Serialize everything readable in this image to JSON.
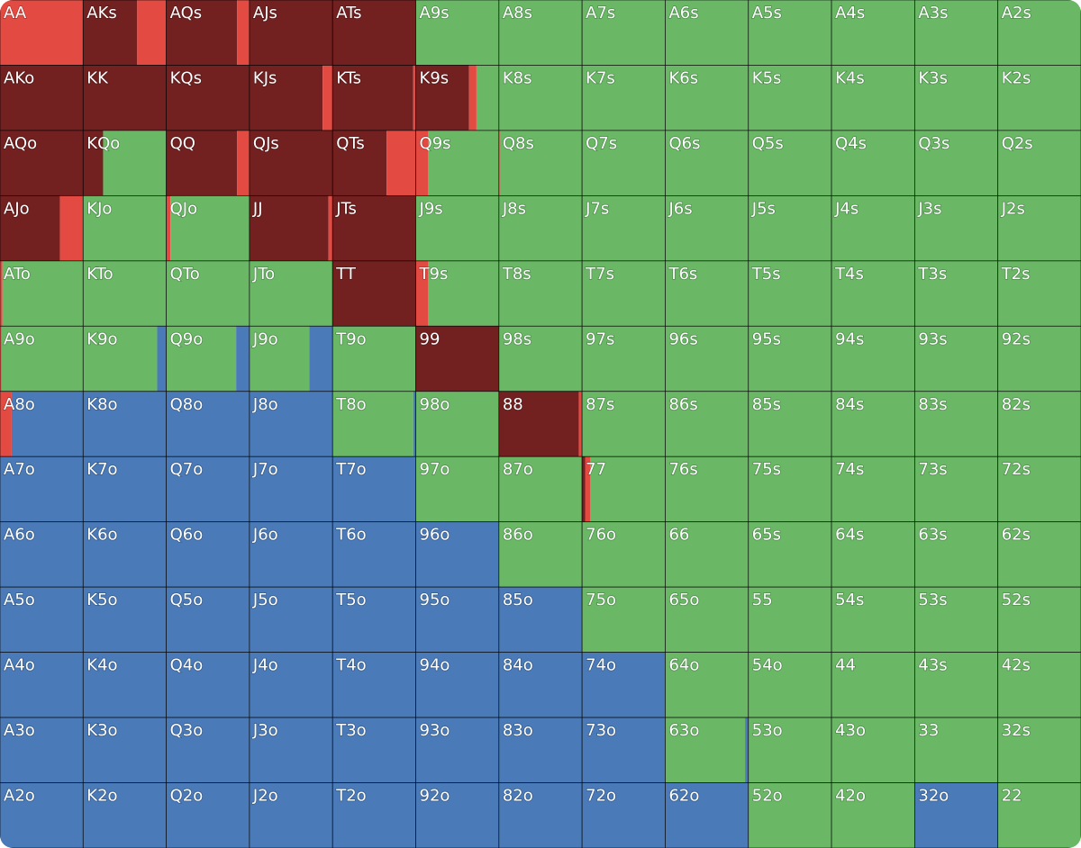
{
  "colors": [
    "#722020",
    "#e34a42",
    "#6ab866",
    "#4a7ab7"
  ],
  "labels": [
    [
      "AA",
      "AKs",
      "AQs",
      "AJs",
      "ATs",
      "A9s",
      "A8s",
      "A7s",
      "A6s",
      "A5s",
      "A4s",
      "A3s",
      "A2s"
    ],
    [
      "AKo",
      "KK",
      "KQs",
      "KJs",
      "KTs",
      "K9s",
      "K8s",
      "K7s",
      "K6s",
      "K5s",
      "K4s",
      "K3s",
      "K2s"
    ],
    [
      "AQo",
      "KQo",
      "QQ",
      "QJs",
      "QTs",
      "Q9s",
      "Q8s",
      "Q7s",
      "Q6s",
      "Q5s",
      "Q4s",
      "Q3s",
      "Q2s"
    ],
    [
      "AJo",
      "KJo",
      "QJo",
      "JJ",
      "JTs",
      "J9s",
      "J8s",
      "J7s",
      "J6s",
      "J5s",
      "J4s",
      "J3s",
      "J2s"
    ],
    [
      "ATo",
      "KTo",
      "QTo",
      "JTo",
      "TT",
      "T9s",
      "T8s",
      "T7s",
      "T6s",
      "T5s",
      "T4s",
      "T3s",
      "T2s"
    ],
    [
      "A9o",
      "K9o",
      "Q9o",
      "J9o",
      "T9o",
      "99",
      "98s",
      "97s",
      "96s",
      "95s",
      "94s",
      "93s",
      "92s"
    ],
    [
      "A8o",
      "K8o",
      "Q8o",
      "J8o",
      "T8o",
      "98o",
      "88",
      "87s",
      "86s",
      "85s",
      "84s",
      "83s",
      "82s"
    ],
    [
      "A7o",
      "K7o",
      "Q7o",
      "J7o",
      "T7o",
      "97o",
      "87o",
      "77",
      "76s",
      "75s",
      "74s",
      "73s",
      "72s"
    ],
    [
      "A6o",
      "K6o",
      "Q6o",
      "J6o",
      "T6o",
      "96o",
      "86o",
      "76o",
      "66",
      "65s",
      "64s",
      "63s",
      "62s"
    ],
    [
      "A5o",
      "K5o",
      "Q5o",
      "J5o",
      "T5o",
      "95o",
      "85o",
      "75o",
      "65o",
      "55",
      "54s",
      "53s",
      "52s"
    ],
    [
      "A4o",
      "K4o",
      "Q4o",
      "J4o",
      "T4o",
      "94o",
      "84o",
      "74o",
      "64o",
      "54o",
      "44",
      "43s",
      "42s"
    ],
    [
      "A3o",
      "K3o",
      "Q3o",
      "J3o",
      "T3o",
      "93o",
      "83o",
      "73o",
      "63o",
      "53o",
      "43o",
      "33",
      "32s"
    ],
    [
      "A2o",
      "K2o",
      "Q2o",
      "J2o",
      "T2o",
      "92o",
      "82o",
      "72o",
      "62o",
      "52o",
      "42o",
      "32o",
      "22"
    ]
  ],
  "mix": [
    [
      [
        0,
        100,
        0,
        0
      ],
      [
        65,
        35,
        0,
        0
      ],
      [
        85,
        15,
        0,
        0
      ],
      [
        100,
        0,
        0,
        0
      ],
      [
        100,
        0,
        0,
        0
      ],
      [
        0,
        0,
        100,
        0
      ],
      [
        0,
        0,
        100,
        0
      ],
      [
        0,
        0,
        100,
        0
      ],
      [
        0,
        0,
        100,
        0
      ],
      [
        0,
        0,
        100,
        0
      ],
      [
        0,
        0,
        100,
        0
      ],
      [
        0,
        0,
        100,
        0
      ],
      [
        0,
        0,
        100,
        0
      ]
    ],
    [
      [
        100,
        0,
        0,
        0
      ],
      [
        100,
        0,
        0,
        0
      ],
      [
        100,
        0,
        0,
        0
      ],
      [
        88,
        12,
        0,
        0
      ],
      [
        97,
        3,
        0,
        0
      ],
      [
        64,
        9,
        27,
        0
      ],
      [
        0,
        0,
        100,
        0
      ],
      [
        0,
        0,
        100,
        0
      ],
      [
        0,
        0,
        100,
        0
      ],
      [
        0,
        0,
        100,
        0
      ],
      [
        0,
        0,
        100,
        0
      ],
      [
        0,
        0,
        100,
        0
      ],
      [
        0,
        0,
        100,
        0
      ]
    ],
    [
      [
        100,
        0,
        0,
        0
      ],
      [
        24,
        0,
        76,
        0
      ],
      [
        85,
        15,
        0,
        0
      ],
      [
        100,
        0,
        0,
        0
      ],
      [
        65,
        35,
        0,
        0
      ],
      [
        0,
        15,
        85,
        0
      ],
      [
        0,
        1,
        99,
        0
      ],
      [
        0,
        0,
        100,
        0
      ],
      [
        0,
        0,
        100,
        0
      ],
      [
        0,
        0,
        100,
        0
      ],
      [
        0,
        0,
        100,
        0
      ],
      [
        0,
        0,
        100,
        0
      ],
      [
        0,
        0,
        100,
        0
      ]
    ],
    [
      [
        72,
        28,
        0,
        0
      ],
      [
        0,
        0,
        100,
        0
      ],
      [
        0,
        5,
        95,
        0
      ],
      [
        95,
        5,
        0,
        0
      ],
      [
        100,
        0,
        0,
        0
      ],
      [
        0,
        0,
        100,
        0
      ],
      [
        0,
        0,
        100,
        0
      ],
      [
        0,
        0,
        100,
        0
      ],
      [
        0,
        0,
        100,
        0
      ],
      [
        0,
        0,
        100,
        0
      ],
      [
        0,
        0,
        100,
        0
      ],
      [
        0,
        0,
        100,
        0
      ],
      [
        0,
        0,
        100,
        0
      ]
    ],
    [
      [
        0,
        3,
        97,
        0
      ],
      [
        0,
        0,
        100,
        0
      ],
      [
        0,
        0,
        100,
        0
      ],
      [
        0,
        0,
        100,
        0
      ],
      [
        100,
        0,
        0,
        0
      ],
      [
        0,
        15,
        85,
        0
      ],
      [
        0,
        0,
        100,
        0
      ],
      [
        0,
        0,
        100,
        0
      ],
      [
        0,
        0,
        100,
        0
      ],
      [
        0,
        0,
        100,
        0
      ],
      [
        0,
        0,
        100,
        0
      ],
      [
        0,
        0,
        100,
        0
      ],
      [
        0,
        0,
        100,
        0
      ]
    ],
    [
      [
        0,
        2,
        98,
        0
      ],
      [
        0,
        0,
        89,
        11
      ],
      [
        0,
        0,
        84,
        16
      ],
      [
        0,
        0,
        72,
        28
      ],
      [
        0,
        0,
        100,
        0
      ],
      [
        100,
        0,
        0,
        0
      ],
      [
        0,
        0,
        100,
        0
      ],
      [
        0,
        0,
        100,
        0
      ],
      [
        0,
        0,
        100,
        0
      ],
      [
        0,
        0,
        100,
        0
      ],
      [
        0,
        0,
        100,
        0
      ],
      [
        0,
        0,
        100,
        0
      ],
      [
        0,
        0,
        100,
        0
      ]
    ],
    [
      [
        0,
        14,
        0,
        86
      ],
      [
        0,
        0,
        0,
        100
      ],
      [
        0,
        0,
        0,
        100
      ],
      [
        0,
        0,
        0,
        100
      ],
      [
        0,
        0,
        97,
        3
      ],
      [
        0,
        0,
        100,
        0
      ],
      [
        96,
        4,
        0,
        0
      ],
      [
        0,
        0,
        100,
        0
      ],
      [
        0,
        0,
        100,
        0
      ],
      [
        0,
        0,
        100,
        0
      ],
      [
        0,
        0,
        100,
        0
      ],
      [
        0,
        0,
        100,
        0
      ],
      [
        0,
        0,
        100,
        0
      ]
    ],
    [
      [
        0,
        0,
        0,
        100
      ],
      [
        0,
        0,
        0,
        100
      ],
      [
        0,
        0,
        0,
        100
      ],
      [
        0,
        0,
        0,
        100
      ],
      [
        0,
        0,
        0,
        100
      ],
      [
        0,
        0,
        100,
        0
      ],
      [
        0,
        0,
        100,
        0
      ],
      [
        4,
        6,
        90,
        0
      ],
      [
        0,
        0,
        100,
        0
      ],
      [
        0,
        0,
        100,
        0
      ],
      [
        0,
        0,
        100,
        0
      ],
      [
        0,
        0,
        100,
        0
      ],
      [
        0,
        0,
        100,
        0
      ]
    ],
    [
      [
        0,
        0,
        0,
        100
      ],
      [
        0,
        0,
        0,
        100
      ],
      [
        0,
        0,
        0,
        100
      ],
      [
        0,
        0,
        0,
        100
      ],
      [
        0,
        0,
        0,
        100
      ],
      [
        0,
        0,
        0,
        100
      ],
      [
        0,
        0,
        100,
        0
      ],
      [
        0,
        0,
        100,
        0
      ],
      [
        0,
        0,
        100,
        0
      ],
      [
        0,
        0,
        100,
        0
      ],
      [
        0,
        0,
        100,
        0
      ],
      [
        0,
        0,
        100,
        0
      ],
      [
        0,
        0,
        100,
        0
      ]
    ],
    [
      [
        0,
        0,
        0,
        100
      ],
      [
        0,
        0,
        0,
        100
      ],
      [
        0,
        0,
        0,
        100
      ],
      [
        0,
        0,
        0,
        100
      ],
      [
        0,
        0,
        0,
        100
      ],
      [
        0,
        0,
        0,
        100
      ],
      [
        0,
        0,
        0,
        100
      ],
      [
        0,
        0,
        100,
        0
      ],
      [
        0,
        0,
        100,
        0
      ],
      [
        0,
        0,
        100,
        0
      ],
      [
        0,
        0,
        100,
        0
      ],
      [
        0,
        0,
        100,
        0
      ],
      [
        0,
        0,
        100,
        0
      ]
    ],
    [
      [
        0,
        0,
        0,
        100
      ],
      [
        0,
        0,
        0,
        100
      ],
      [
        0,
        0,
        0,
        100
      ],
      [
        0,
        0,
        0,
        100
      ],
      [
        0,
        0,
        0,
        100
      ],
      [
        0,
        0,
        0,
        100
      ],
      [
        0,
        0,
        0,
        100
      ],
      [
        0,
        0,
        0,
        100
      ],
      [
        0,
        0,
        100,
        0
      ],
      [
        0,
        0,
        100,
        0
      ],
      [
        0,
        0,
        100,
        0
      ],
      [
        0,
        0,
        100,
        0
      ],
      [
        0,
        0,
        100,
        0
      ]
    ],
    [
      [
        0,
        0,
        0,
        100
      ],
      [
        0,
        0,
        0,
        100
      ],
      [
        0,
        0,
        0,
        100
      ],
      [
        0,
        0,
        0,
        100
      ],
      [
        0,
        0,
        0,
        100
      ],
      [
        0,
        0,
        0,
        100
      ],
      [
        0,
        0,
        0,
        100
      ],
      [
        0,
        0,
        0,
        100
      ],
      [
        0,
        0,
        96,
        4
      ],
      [
        0,
        0,
        100,
        0
      ],
      [
        0,
        0,
        100,
        0
      ],
      [
        0,
        0,
        100,
        0
      ],
      [
        0,
        0,
        100,
        0
      ]
    ],
    [
      [
        0,
        0,
        0,
        100
      ],
      [
        0,
        0,
        0,
        100
      ],
      [
        0,
        0,
        0,
        100
      ],
      [
        0,
        0,
        0,
        100
      ],
      [
        0,
        0,
        0,
        100
      ],
      [
        0,
        0,
        0,
        100
      ],
      [
        0,
        0,
        0,
        100
      ],
      [
        0,
        0,
        0,
        100
      ],
      [
        0,
        0,
        0,
        100
      ],
      [
        0,
        0,
        100,
        0
      ],
      [
        0,
        0,
        100,
        0
      ],
      [
        0,
        0,
        0,
        100
      ],
      [
        0,
        0,
        100,
        0
      ]
    ]
  ]
}
